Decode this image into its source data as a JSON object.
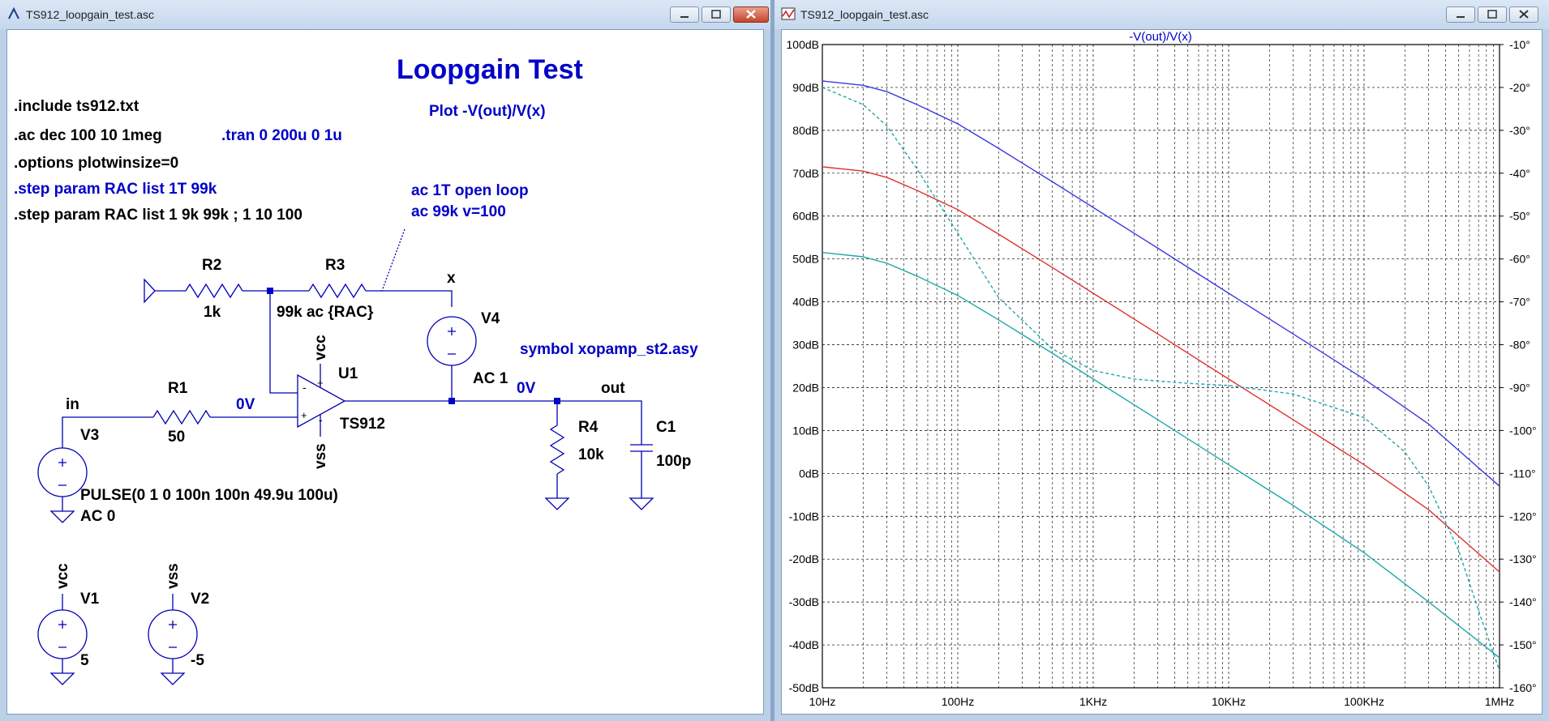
{
  "left_window": {
    "title": "TS912_loopgain_test.asc",
    "schematic": {
      "heading": "Loopgain Test",
      "subheading": "Plot -V(out)/V(x)",
      "directives": [
        ".include ts912.txt",
        ".ac dec 100 10 1meg",
        ".options plotwinsize=0",
        ".step param RAC list 1T 99k",
        ".step param RAC list 1 9k 99k ; 1 10 100"
      ],
      "tran_directive": ".tran 0 200u 0 1u",
      "note_line1": "ac 1T open loop",
      "note_line2": "ac 99k v=100",
      "symbol_note": "symbol xopamp_st2.asy",
      "r2_name": "R2",
      "r2_value": "1k",
      "r3_name": "R3",
      "r3_value": "99k ac {RAC}",
      "r1_name": "R1",
      "r1_value": "50",
      "r4_name": "R4",
      "r4_value": "10k",
      "c1_name": "C1",
      "c1_value": "100p",
      "u1_name": "U1",
      "u1_value": "TS912",
      "v4_name": "V4",
      "v4_value": "AC 1",
      "v3_name": "V3",
      "v3_value": "PULSE(0 1 0 100n 100n 49.9u 100u)",
      "v3_value2": "AC 0",
      "v1_name": "V1",
      "v1_value": "5",
      "v2_name": "V2",
      "v2_value": "-5",
      "net_x": "x",
      "net_in": "in",
      "net_out": "out",
      "net_vcc": "vcc",
      "net_vss": "vss",
      "voltage_in": "0V",
      "voltage_out": "0V",
      "pin_plus": "+",
      "pin_minus": "-"
    }
  },
  "right_window": {
    "title": "TS912_loopgain_test.asc",
    "trace_label": "-V(out)/V(x)"
  },
  "chart_data": {
    "type": "line",
    "title": "-V(out)/V(x)",
    "xscale": "log",
    "xlim": [
      10,
      1000000
    ],
    "ylim": [
      -50,
      100
    ],
    "y2lim": [
      -160,
      -10
    ],
    "grid": true,
    "x_ticks": [
      "10Hz",
      "100Hz",
      "1KHz",
      "10KHz",
      "100KHz",
      "1MHz"
    ],
    "y_ticks": [
      "100dB",
      "90dB",
      "80dB",
      "70dB",
      "60dB",
      "50dB",
      "40dB",
      "30dB",
      "20dB",
      "10dB",
      "0dB",
      "-10dB",
      "-20dB",
      "-30dB",
      "-40dB",
      "-50dB"
    ],
    "y2_ticks": [
      "-10°",
      "-20°",
      "-30°",
      "-40°",
      "-50°",
      "-60°",
      "-70°",
      "-80°",
      "-90°",
      "-100°",
      "-110°",
      "-120°",
      "-130°",
      "-140°",
      "-150°",
      "-160°"
    ],
    "series": [
      {
        "color": "#3a3ae0",
        "style": "solid",
        "axis": "dB",
        "x": [
          10,
          20,
          30,
          50,
          100,
          200,
          500,
          1000,
          3000,
          10000,
          30000,
          100000,
          300000,
          1000000
        ],
        "y": [
          91.5,
          90.5,
          89,
          86,
          81.5,
          75.8,
          68,
          62,
          52.5,
          42,
          32.5,
          22,
          11.5,
          -3
        ]
      },
      {
        "color": "#e03030",
        "style": "solid",
        "axis": "dB",
        "x": [
          10,
          20,
          30,
          50,
          100,
          200,
          500,
          1000,
          3000,
          10000,
          30000,
          100000,
          300000,
          1000000
        ],
        "y": [
          71.5,
          70.5,
          69,
          66,
          61.5,
          55.8,
          48,
          42,
          32.5,
          22,
          12.5,
          2,
          -8.5,
          -23
        ]
      },
      {
        "color": "#1fa8a8",
        "style": "solid",
        "axis": "dB",
        "x": [
          10,
          20,
          30,
          50,
          100,
          200,
          500,
          1000,
          3000,
          10000,
          30000,
          100000,
          300000,
          1000000
        ],
        "y": [
          51.5,
          50.5,
          49,
          46,
          41.5,
          35.8,
          28,
          22,
          12.5,
          2,
          -7.5,
          -18.5,
          -30,
          -43
        ]
      },
      {
        "color": "#1fa8a8",
        "style": "dashed",
        "axis": "phase",
        "x": [
          10,
          20,
          30,
          50,
          100,
          200,
          500,
          1000,
          2000,
          5000,
          10000,
          30000,
          100000,
          200000,
          300000,
          500000,
          700000,
          1000000
        ],
        "y": [
          -20,
          -24,
          -29,
          -39,
          -54,
          -69,
          -81,
          -86,
          -88,
          -89,
          -89.5,
          -91.5,
          -97,
          -105,
          -113,
          -128,
          -142,
          -156
        ]
      }
    ]
  }
}
